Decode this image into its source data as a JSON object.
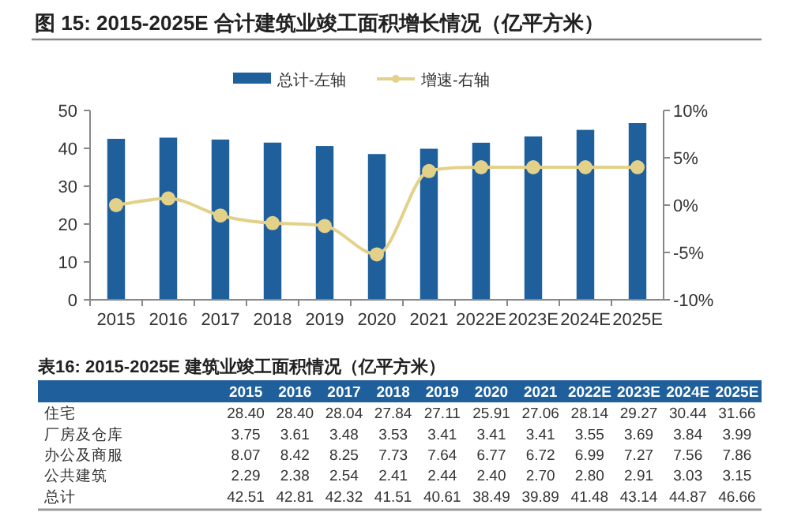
{
  "chart_data": [
    {
      "type": "bar",
      "title": "图 15:  2015-2025E 合计建筑业竣工面积增长情况（亿平方米）",
      "categories": [
        "2015",
        "2016",
        "2017",
        "2018",
        "2019",
        "2020",
        "2021",
        "2022E",
        "2023E",
        "2024E",
        "2025E"
      ],
      "series": [
        {
          "name": "总计-左轴",
          "color": "#1f5f9c",
          "values": [
            42.51,
            42.81,
            42.32,
            41.51,
            40.61,
            38.49,
            39.89,
            41.48,
            43.14,
            44.87,
            46.66
          ]
        },
        {
          "name": "增速-右轴",
          "type": "line",
          "axis": "y2",
          "color": "#e3d18a",
          "marker": "circle",
          "values": [
            0.0,
            0.7,
            -1.1,
            -1.9,
            -2.2,
            -5.2,
            3.6,
            4.0,
            4.0,
            4.0,
            4.0
          ]
        }
      ],
      "ylim": [
        0,
        50
      ],
      "yticks": [
        0,
        10,
        20,
        30,
        40,
        50
      ],
      "y2lim": [
        -10,
        10
      ],
      "y2ticks": [
        {
          "value": 10,
          "label": "10%"
        },
        {
          "value": 5,
          "label": "5%"
        },
        {
          "value": 0,
          "label": "0%"
        },
        {
          "value": -5,
          "label": "-5%"
        },
        {
          "value": -10,
          "label": "-10%"
        }
      ],
      "legend": "top",
      "grid": false
    },
    {
      "type": "heatmap",
      "title": "表16:  2015-2025E 建筑业竣工面积情况（亿平方米）",
      "categories": [
        "2015",
        "2016",
        "2017",
        "2018",
        "2019",
        "2020",
        "2021",
        "2022E",
        "2023E",
        "2024E",
        "2025E"
      ],
      "y_categories": [
        "住宅",
        "厂房及仓库",
        "办公及商服",
        "公共建筑",
        "总计"
      ],
      "cells": [
        [
          28.4,
          28.4,
          28.04,
          27.84,
          27.11,
          25.91,
          27.06,
          28.14,
          29.27,
          30.44,
          31.66
        ],
        [
          3.75,
          3.61,
          3.48,
          3.53,
          3.41,
          3.41,
          3.41,
          3.55,
          3.69,
          3.84,
          3.99
        ],
        [
          8.07,
          8.42,
          8.25,
          7.73,
          7.64,
          6.77,
          6.72,
          6.99,
          7.27,
          7.56,
          7.86
        ],
        [
          2.29,
          2.38,
          2.54,
          2.41,
          2.44,
          2.4,
          2.7,
          2.8,
          2.91,
          3.03,
          3.15
        ],
        [
          42.51,
          42.81,
          42.32,
          41.51,
          40.61,
          38.49,
          39.89,
          41.48,
          43.14,
          44.87,
          46.66
        ]
      ],
      "cell_labels": [
        [
          "28.40",
          "28.40",
          "28.04",
          "27.84",
          "27.11",
          "25.91",
          "27.06",
          "28.14",
          "29.27",
          "30.44",
          "31.66"
        ],
        [
          "3.75",
          "3.61",
          "3.48",
          "3.53",
          "3.41",
          "3.41",
          "3.41",
          "3.55",
          "3.69",
          "3.84",
          "3.99"
        ],
        [
          "8.07",
          "8.42",
          "8.25",
          "7.73",
          "7.64",
          "6.77",
          "6.72",
          "6.99",
          "7.27",
          "7.56",
          "7.86"
        ],
        [
          "2.29",
          "2.38",
          "2.54",
          "2.41",
          "2.44",
          "2.40",
          "2.70",
          "2.80",
          "2.91",
          "3.03",
          "3.15"
        ],
        [
          "42.51",
          "42.81",
          "42.32",
          "41.51",
          "40.61",
          "38.49",
          "39.89",
          "41.48",
          "43.14",
          "44.87",
          "46.66"
        ]
      ]
    }
  ]
}
